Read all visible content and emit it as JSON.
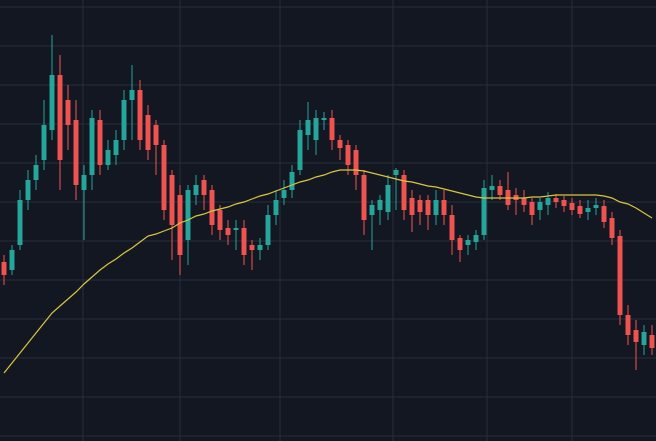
{
  "chart_data": {
    "type": "candlestick",
    "background": "#131722",
    "grid_color": "#2a2e39",
    "up_color": "#26a69a",
    "down_color": "#ef5350",
    "xlim": [
      -0.5,
      81.5
    ],
    "ylim": [
      0,
      441
    ],
    "xgrid": [
      9.875,
      22,
      34.5,
      48.625,
      60.375,
      71
    ],
    "ygrid": [
      434,
      395,
      356,
      317,
      278,
      239,
      200,
      161,
      122,
      83,
      44,
      5
    ],
    "open": [
      179,
      171,
      196,
      241,
      261,
      281,
      311,
      366,
      341,
      321,
      251,
      266,
      321,
      276,
      286,
      301,
      341,
      351,
      326,
      316,
      296,
      266,
      246,
      201,
      246,
      261,
      251,
      231,
      213,
      211,
      213,
      196,
      191,
      196,
      226,
      243,
      251,
      271,
      306,
      301,
      321,
      323,
      301,
      296,
      291,
      266,
      226,
      231,
      229,
      266,
      266,
      243,
      241,
      241,
      226,
      241,
      226,
      203,
      196,
      199,
      206,
      251,
      255,
      251,
      246,
      243,
      239,
      231,
      236,
      243,
      241,
      238,
      235,
      229,
      233,
      235,
      223,
      205,
      126,
      111,
      96,
      106
    ],
    "high": [
      186,
      196,
      251,
      271,
      286,
      341,
      406,
      386,
      356,
      341,
      276,
      331,
      331,
      301,
      311,
      351,
      376,
      361,
      336,
      321,
      301,
      271,
      256,
      256,
      266,
      266,
      256,
      236,
      221,
      221,
      221,
      201,
      203,
      236,
      251,
      261,
      276,
      321,
      339,
      331,
      329,
      331,
      306,
      301,
      296,
      271,
      241,
      246,
      266,
      273,
      271,
      251,
      246,
      246,
      251,
      251,
      236,
      206,
      206,
      211,
      261,
      266,
      261,
      269,
      253,
      251,
      243,
      243,
      249,
      247,
      245,
      243,
      241,
      241,
      243,
      241,
      229,
      211,
      136,
      121,
      116,
      116
    ],
    "low": [
      156,
      166,
      191,
      231,
      251,
      271,
      301,
      251,
      291,
      241,
      201,
      251,
      266,
      271,
      276,
      291,
      301,
      291,
      281,
      266,
      221,
      181,
      166,
      176,
      236,
      231,
      206,
      201,
      196,
      191,
      176,
      171,
      181,
      191,
      216,
      236,
      243,
      266,
      291,
      286,
      311,
      291,
      281,
      266,
      251,
      206,
      191,
      216,
      221,
      231,
      221,
      209,
      216,
      211,
      216,
      216,
      186,
      179,
      186,
      191,
      201,
      241,
      241,
      231,
      226,
      229,
      216,
      221,
      226,
      233,
      229,
      226,
      223,
      221,
      226,
      213,
      196,
      116,
      96,
      71,
      86,
      86
    ],
    "close": [
      166,
      191,
      241,
      261,
      276,
      316,
      366,
      281,
      316,
      256,
      266,
      323,
      276,
      291,
      301,
      341,
      351,
      301,
      291,
      296,
      231,
      216,
      186,
      251,
      256,
      246,
      216,
      211,
      206,
      213,
      186,
      191,
      196,
      226,
      241,
      251,
      269,
      311,
      321,
      323,
      323,
      301,
      293,
      276,
      266,
      221,
      236,
      241,
      256,
      271,
      231,
      226,
      229,
      226,
      241,
      226,
      201,
      191,
      201,
      206,
      253,
      255,
      246,
      236,
      241,
      236,
      226,
      239,
      243,
      239,
      235,
      231,
      227,
      233,
      236,
      219,
      203,
      126,
      106,
      99,
      109,
      93
    ],
    "overlay": {
      "color": "#d9c63f",
      "values": [
        68,
        78,
        88,
        98,
        108,
        118,
        128,
        135,
        142,
        149,
        157,
        164,
        171,
        177,
        182,
        188,
        193,
        199,
        205,
        207,
        210,
        213,
        218,
        221,
        225,
        227,
        230,
        232,
        234,
        237,
        239,
        242,
        245,
        247,
        250,
        253,
        256,
        259,
        261,
        264,
        266,
        269,
        271,
        271,
        271,
        270,
        268,
        266,
        264,
        262,
        260,
        259,
        257,
        255,
        254,
        252,
        250,
        248,
        246,
        244,
        243,
        243,
        243,
        243,
        243,
        243,
        244,
        244,
        245,
        246,
        246,
        246,
        246,
        246,
        246,
        245,
        243,
        239,
        237,
        233,
        228,
        223
      ]
    }
  }
}
